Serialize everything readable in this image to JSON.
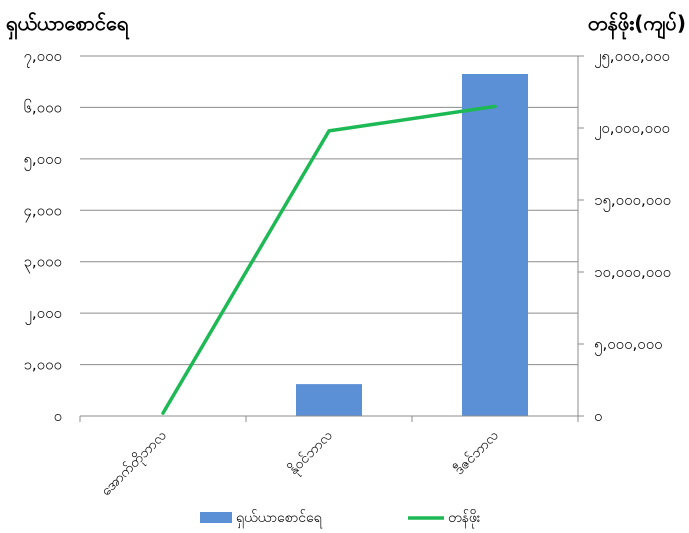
{
  "chart_data": {
    "type": "bar+line",
    "left_axis_title": "ရှယ်ယာစောင်ရေ",
    "right_axis_title": "တန်ဖိုး(ကျပ်)",
    "categories": [
      "အောက်တိုဘာလ",
      "နိုဝင်ဘာလ",
      "ဒီဇင်ဘာလ"
    ],
    "left_ticks": [
      "၀",
      "၁,၀၀၀",
      "၂,၀၀၀",
      "၃,၀၀၀",
      "၄,၀၀၀",
      "၅,၀၀၀",
      "၆,၀၀၀",
      "၇,၀၀၀"
    ],
    "right_ticks": [
      "၀",
      "၅,၀၀၀,၀၀၀",
      "၁၀,၀၀၀,၀၀၀",
      "၁၅,၀၀၀,၀၀၀",
      "၂၀,၀၀၀,၀၀၀",
      "၂၅,၀၀၀,၀၀၀"
    ],
    "ylim_left": [
      0,
      7000
    ],
    "ylim_right": [
      0,
      25000000
    ],
    "series": [
      {
        "name": "ရှယ်ယာစောင်ရေ",
        "type": "bar",
        "axis": "left",
        "color": "#5B8FD6",
        "values": [
          0,
          620,
          6650
        ]
      },
      {
        "name": "တန်ဖိုး",
        "type": "line",
        "axis": "right",
        "color": "#1DB954",
        "values": [
          200000,
          19800000,
          21500000
        ]
      }
    ],
    "legend_position": "bottom",
    "grid": true
  }
}
